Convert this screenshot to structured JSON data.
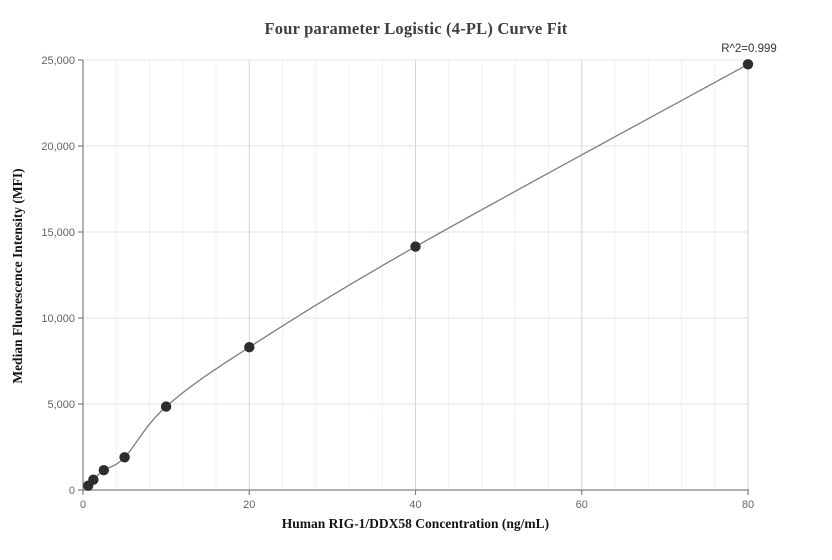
{
  "chart": {
    "title": "Four parameter Logistic (4-PL) Curve Fit",
    "x_axis_title": "Human RIG-1/DDX58 Concentration (ng/mL)",
    "y_axis_title": "Median Fluorescence Intensity (MFI)",
    "r_squared_label": "R^2=0.999"
  },
  "chart_data": {
    "type": "scatter",
    "title": "Four parameter Logistic (4-PL) Curve Fit",
    "xlabel": "Human RIG-1/DDX58 Concentration (ng/mL)",
    "ylabel": "Median Fluorescence Intensity (MFI)",
    "annotation": "R^2=0.999",
    "fit_type": "4PL",
    "x": [
      0.625,
      1.25,
      2.5,
      5,
      10,
      20,
      40,
      80
    ],
    "y": [
      250,
      600,
      1150,
      1900,
      4850,
      8300,
      14150,
      24750
    ],
    "xlim": [
      0,
      80
    ],
    "ylim": [
      0,
      25000
    ],
    "x_ticks": [
      0,
      20,
      40,
      60,
      80
    ],
    "y_ticks": [
      0,
      5000,
      10000,
      15000,
      20000,
      25000
    ],
    "x_minor_step": 4,
    "grid": true,
    "legend_position": "none",
    "colors": {
      "point": "#2d2d2d",
      "curve": "#7d7d7d",
      "axis": "#808080",
      "tick_label": "#5f6370",
      "grid_minor": "#eef0f9",
      "grid_major_x": "#ccd7e6",
      "grid_y": "#dbe5f2",
      "title": "#3f3f3f",
      "axis_title": "#141414",
      "annotation": "#333333"
    }
  }
}
